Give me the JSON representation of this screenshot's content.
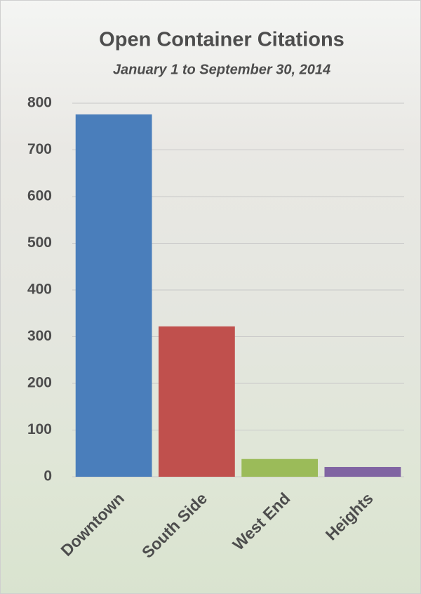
{
  "chart_data": {
    "type": "bar",
    "title": "Open Container Citations",
    "subtitle": "January 1 to September 30, 2014",
    "categories": [
      "Downtown",
      "South Side",
      "West End",
      "Heights"
    ],
    "values": [
      776,
      322,
      38,
      21
    ],
    "colors": [
      "#4a7ebb",
      "#c0504d",
      "#9bbb59",
      "#8064a2"
    ],
    "ylim": [
      0,
      800
    ],
    "yticks": [
      0,
      100,
      200,
      300,
      400,
      500,
      600,
      700,
      800
    ],
    "grid": true
  }
}
